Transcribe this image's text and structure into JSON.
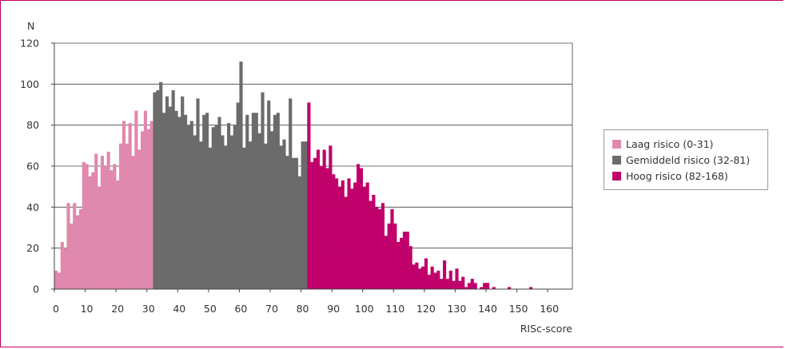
{
  "chart_data": {
    "type": "bar",
    "xlabel": "RISc-score",
    "ylabel": "N",
    "xlim": [
      0,
      168
    ],
    "ylim": [
      0,
      120
    ],
    "yticks": [
      0,
      20,
      40,
      60,
      80,
      100,
      120
    ],
    "xticks": [
      0,
      10,
      20,
      30,
      40,
      50,
      60,
      70,
      80,
      90,
      100,
      110,
      120,
      130,
      140,
      150,
      160
    ],
    "grid": true,
    "legend_position": "right",
    "series": [
      {
        "name": "Laag risico (0-31)",
        "color": "#e088ad",
        "start": 0,
        "values": [
          9,
          8,
          23,
          20,
          42,
          32,
          42,
          36,
          39,
          62,
          61,
          55,
          57,
          66,
          50,
          65,
          60,
          67,
          58,
          61,
          53,
          71,
          82,
          71,
          81,
          65,
          87,
          68,
          77,
          87,
          78,
          82
        ]
      },
      {
        "name": "Gemiddeld risico (32-81)",
        "color": "#6b6b6b",
        "start": 32,
        "values": [
          96,
          97,
          101,
          86,
          94,
          89,
          97,
          87,
          84,
          94,
          85,
          80,
          82,
          75,
          93,
          72,
          85,
          86,
          69,
          79,
          80,
          84,
          75,
          70,
          81,
          75,
          80,
          91,
          111,
          69,
          85,
          72,
          86,
          86,
          76,
          96,
          71,
          92,
          77,
          85,
          86,
          70,
          73,
          65,
          93,
          64,
          64,
          55,
          72,
          72
        ]
      },
      {
        "name": "Hoog risico (82-168)",
        "color": "#c0006b",
        "start": 82,
        "values": [
          91,
          62,
          64,
          68,
          60,
          68,
          59,
          70,
          56,
          54,
          50,
          53,
          45,
          54,
          49,
          52,
          61,
          59,
          50,
          52,
          43,
          46,
          40,
          39,
          42,
          26,
          32,
          39,
          32,
          23,
          25,
          28,
          28,
          21,
          12,
          13,
          10,
          11,
          15,
          7,
          11,
          8,
          9,
          5,
          14,
          5,
          9,
          4,
          10,
          4,
          6,
          1,
          3,
          5,
          3,
          0,
          1,
          3,
          3,
          0,
          1,
          0,
          0,
          0,
          0,
          1,
          0,
          0,
          0,
          0,
          0,
          0,
          1,
          0,
          0,
          0,
          0,
          0,
          0,
          0,
          0,
          0,
          0,
          0,
          0,
          0,
          0
        ]
      }
    ]
  }
}
